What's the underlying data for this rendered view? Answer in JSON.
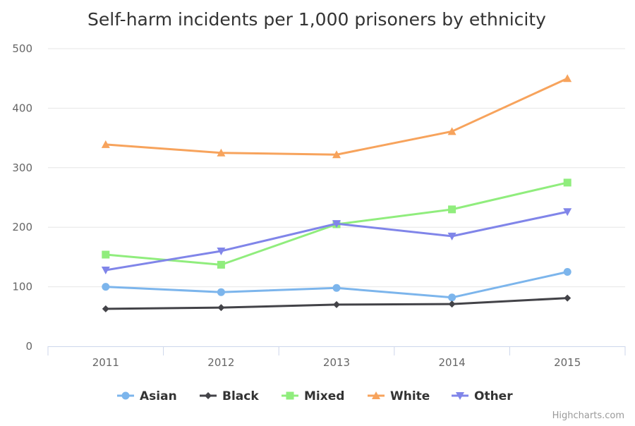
{
  "chart_data": {
    "type": "line",
    "title": "Self-harm incidents per 1,000 prisoners by ethnicity",
    "categories": [
      "2011",
      "2012",
      "2013",
      "2014",
      "2015"
    ],
    "y_ticks": [
      "0",
      "100",
      "200",
      "300",
      "400",
      "500"
    ],
    "ylim": [
      0,
      500
    ],
    "grid": true,
    "legend_position": "bottom-center",
    "series": [
      {
        "name": "Asian",
        "color": "#7cb5ec",
        "marker": "circle",
        "values": [
          100,
          91,
          98,
          82,
          125
        ]
      },
      {
        "name": "Black",
        "color": "#434348",
        "marker": "diamond",
        "values": [
          63,
          65,
          70,
          71,
          81
        ]
      },
      {
        "name": "Mixed",
        "color": "#90ed7d",
        "marker": "square",
        "values": [
          154,
          137,
          205,
          230,
          275
        ]
      },
      {
        "name": "White",
        "color": "#f7a35c",
        "marker": "triangle",
        "values": [
          339,
          325,
          322,
          361,
          450
        ]
      },
      {
        "name": "Other",
        "color": "#8085e9",
        "marker": "triangle-down",
        "values": [
          128,
          160,
          206,
          185,
          226
        ]
      }
    ]
  },
  "credits": "Highcharts.com",
  "colors": {
    "grid": "#e6e6e6",
    "axis": "#ccd6eb",
    "background": "#ffffff"
  }
}
